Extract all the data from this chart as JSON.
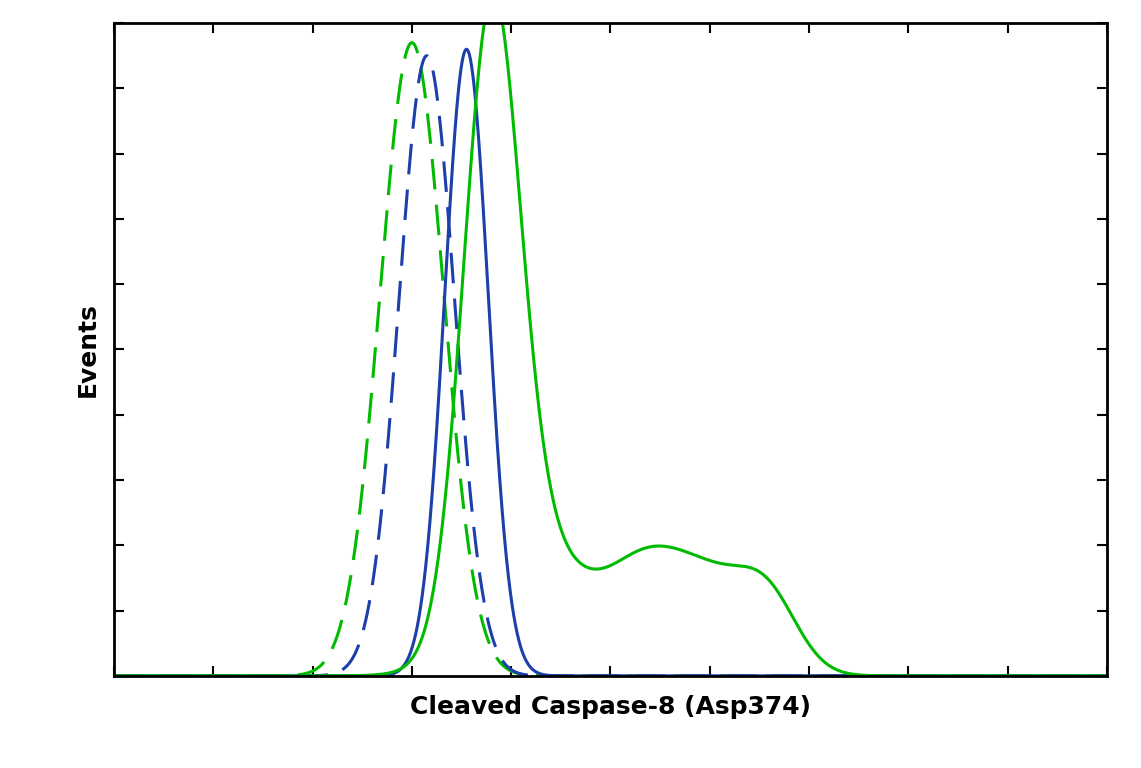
{
  "title": "",
  "xlabel": "Cleaved Caspase-8 (Asp374)",
  "ylabel": "Events",
  "xlabel_fontsize": 18,
  "ylabel_fontsize": 18,
  "xlabel_fontweight": "bold",
  "ylabel_fontweight": "bold",
  "background_color": "#ffffff",
  "line_color_blue": "#1c3faa",
  "line_color_green": "#00bb00",
  "xlim": [
    0,
    1000
  ],
  "ylim": [
    0,
    1000
  ],
  "figure_bg": "#ffffff"
}
